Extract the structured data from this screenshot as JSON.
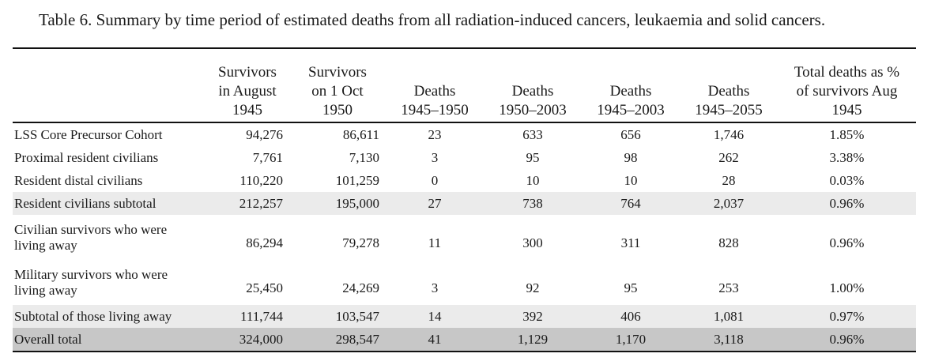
{
  "caption": "Table 6.  Summary by time period of estimated deaths from all radiation-induced cancers, leukaemia and solid cancers.",
  "header": {
    "col0": "",
    "col1": [
      "Survivors",
      "in August",
      "1945"
    ],
    "col2": [
      "Survivors",
      "on 1 Oct",
      "1950"
    ],
    "col3": [
      "Deaths",
      "1945–1950"
    ],
    "col4": [
      "Deaths",
      "1950–2003"
    ],
    "col5": [
      "Deaths",
      "1945–2003"
    ],
    "col6": [
      "Deaths",
      "1945–2055"
    ],
    "col7": [
      "Total deaths as %",
      "of survivors Aug",
      "1945"
    ]
  },
  "rows": [
    {
      "label": [
        "LSS Core Precursor Cohort"
      ],
      "values": [
        "94,276",
        "86,611",
        "23",
        "633",
        "656",
        "1,746",
        "1.85%"
      ]
    },
    {
      "label": [
        "Proximal resident civilians"
      ],
      "values": [
        "7,761",
        "7,130",
        "3",
        "95",
        "98",
        "262",
        "3.38%"
      ]
    },
    {
      "label": [
        "Resident distal civilians"
      ],
      "values": [
        "110,220",
        "101,259",
        "0",
        "10",
        "10",
        "28",
        "0.03%"
      ]
    },
    {
      "label": [
        "Resident civilians subtotal"
      ],
      "values": [
        "212,257",
        "195,000",
        "27",
        "738",
        "764",
        "2,037",
        "0.96%"
      ]
    },
    {
      "label": [
        "Civilian survivors who were",
        "living away"
      ],
      "values": [
        "86,294",
        "79,278",
        "11",
        "300",
        "311",
        "828",
        "0.96%"
      ]
    },
    {
      "label": [
        "Military survivors who were",
        "living away"
      ],
      "values": [
        "25,450",
        "24,269",
        "3",
        "92",
        "95",
        "253",
        "1.00%"
      ]
    },
    {
      "label": [
        "Subtotal of those living away"
      ],
      "values": [
        "111,744",
        "103,547",
        "14",
        "392",
        "406",
        "1,081",
        "0.97%"
      ]
    },
    {
      "label": [
        "Overall total"
      ],
      "values": [
        "324,000",
        "298,547",
        "41",
        "1,129",
        "1,170",
        "3,118",
        "0.96%"
      ]
    }
  ]
}
